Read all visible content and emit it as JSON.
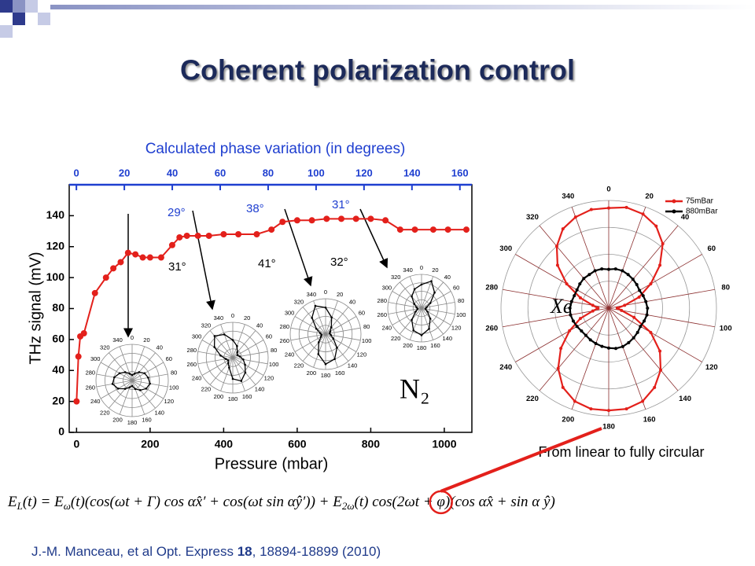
{
  "slide": {
    "title": "Coherent polarization control",
    "equation": {
      "parts": [
        "E",
        "L",
        "(t) = E",
        "ω",
        "(t)(cos(ωt + Γ) cos αx̂′ + cos(ωt sin αŷ′)) + E",
        "2ω",
        "(t) cos(2ωt + ",
        "φ",
        ")(cos αx̂ + sin α ŷ)"
      ]
    },
    "caption": "From linear to fully circular",
    "citation": {
      "parts": [
        "J.-M. Manceau, et al Opt. Express ",
        "18",
        ", 18894-18899 (2010)"
      ]
    }
  },
  "chart_data": [
    {
      "type": "line",
      "top_axis_label": "Calculated phase variation (in degrees)",
      "y_label": "THz signal (mV)",
      "x_label": "Pressure (mbar)",
      "color": "#e3201b",
      "top_axis_color": "#1f3fd0",
      "x": [
        0,
        5,
        10,
        20,
        50,
        80,
        100,
        120,
        140,
        160,
        180,
        200,
        230,
        260,
        280,
        300,
        330,
        360,
        400,
        440,
        490,
        530,
        560,
        600,
        640,
        680,
        720,
        760,
        800,
        840,
        880,
        920,
        970,
        1010,
        1060
      ],
      "values": [
        20,
        49,
        62,
        64,
        90,
        100,
        106,
        110,
        116,
        115,
        113,
        113,
        113,
        121,
        126,
        127,
        127,
        127,
        128,
        128,
        128,
        131,
        136,
        137,
        137,
        138,
        138,
        138,
        138,
        137,
        131,
        131,
        131,
        131,
        131
      ],
      "xlim": [
        -20,
        1075
      ],
      "xticks": [
        0,
        200,
        400,
        600,
        800,
        1000
      ],
      "ylim": [
        0,
        160
      ],
      "yticks": [
        0,
        20,
        40,
        60,
        80,
        100,
        120,
        140
      ],
      "x2lim": [
        -3,
        165
      ],
      "x2ticks": [
        0,
        20,
        40,
        60,
        80,
        100,
        120,
        140,
        160
      ],
      "annotations": [
        "29°",
        "38°",
        "31°",
        "31°",
        "41°",
        "32°",
        "N₂"
      ],
      "insets": [
        {
          "type": "polar",
          "theta": [
            0,
            20,
            40,
            60,
            80,
            100,
            120,
            140,
            160,
            180,
            200,
            220,
            240,
            260,
            280,
            300,
            320,
            340
          ],
          "rlim": [
            0,
            1
          ],
          "values": [
            0.15,
            0.2,
            0.3,
            0.4,
            0.45,
            0.5,
            0.45,
            0.35,
            0.25,
            0.15,
            0.2,
            0.3,
            0.45,
            0.55,
            0.5,
            0.4,
            0.3,
            0.2
          ]
        },
        {
          "type": "polar",
          "theta": [
            0,
            20,
            40,
            60,
            80,
            100,
            120,
            140,
            160,
            180,
            200,
            220,
            240,
            260,
            280,
            300,
            320,
            340
          ],
          "rlim": [
            0,
            1
          ],
          "values": [
            0.5,
            0.35,
            0.2,
            0.15,
            0.2,
            0.3,
            0.4,
            0.55,
            0.7,
            0.6,
            0.3,
            0.2,
            0.15,
            0.2,
            0.35,
            0.6,
            0.8,
            0.7
          ]
        },
        {
          "type": "polar",
          "theta": [
            0,
            20,
            40,
            60,
            80,
            100,
            120,
            140,
            160,
            180,
            200,
            220,
            240,
            260,
            280,
            300,
            320,
            340
          ],
          "rlim": [
            0,
            1
          ],
          "values": [
            0.75,
            0.5,
            0.25,
            0.15,
            0.12,
            0.15,
            0.25,
            0.5,
            0.75,
            0.85,
            0.6,
            0.3,
            0.15,
            0.12,
            0.15,
            0.3,
            0.6,
            0.85
          ]
        },
        {
          "type": "polar",
          "theta": [
            0,
            20,
            40,
            60,
            80,
            100,
            120,
            140,
            160,
            180,
            200,
            220,
            240,
            260,
            280,
            300,
            320,
            340
          ],
          "rlim": [
            0,
            1
          ],
          "values": [
            0.7,
            0.85,
            0.6,
            0.3,
            0.15,
            0.12,
            0.2,
            0.4,
            0.65,
            0.8,
            0.7,
            0.45,
            0.2,
            0.12,
            0.15,
            0.25,
            0.45,
            0.6
          ]
        }
      ]
    },
    {
      "type": "polar",
      "annotation": "Xe",
      "rlim": [
        0,
        1
      ],
      "legend": "upper right",
      "theta": [
        0,
        10,
        20,
        30,
        40,
        50,
        60,
        70,
        80,
        90,
        100,
        110,
        120,
        130,
        140,
        150,
        160,
        170,
        180,
        190,
        200,
        210,
        220,
        230,
        240,
        250,
        260,
        270,
        280,
        290,
        300,
        310,
        320,
        330,
        340,
        350
      ],
      "series": [
        {
          "name": "75mBar",
          "color": "#e3201b",
          "values": [
            0.93,
            0.95,
            0.93,
            0.88,
            0.78,
            0.62,
            0.45,
            0.3,
            0.15,
            0.08,
            0.12,
            0.25,
            0.45,
            0.62,
            0.75,
            0.85,
            0.92,
            0.95,
            0.95,
            0.95,
            0.92,
            0.85,
            0.73,
            0.58,
            0.42,
            0.28,
            0.15,
            0.1,
            0.15,
            0.28,
            0.45,
            0.62,
            0.75,
            0.85,
            0.9,
            0.93
          ]
        },
        {
          "name": "880mBar",
          "color": "#000000",
          "values": [
            0.36,
            0.37,
            0.37,
            0.36,
            0.35,
            0.34,
            0.33,
            0.34,
            0.35,
            0.36,
            0.36,
            0.35,
            0.34,
            0.35,
            0.36,
            0.37,
            0.38,
            0.38,
            0.37,
            0.36,
            0.35,
            0.34,
            0.33,
            0.33,
            0.34,
            0.35,
            0.36,
            0.36,
            0.35,
            0.34,
            0.34,
            0.35,
            0.36,
            0.36,
            0.37,
            0.37
          ]
        }
      ]
    }
  ]
}
